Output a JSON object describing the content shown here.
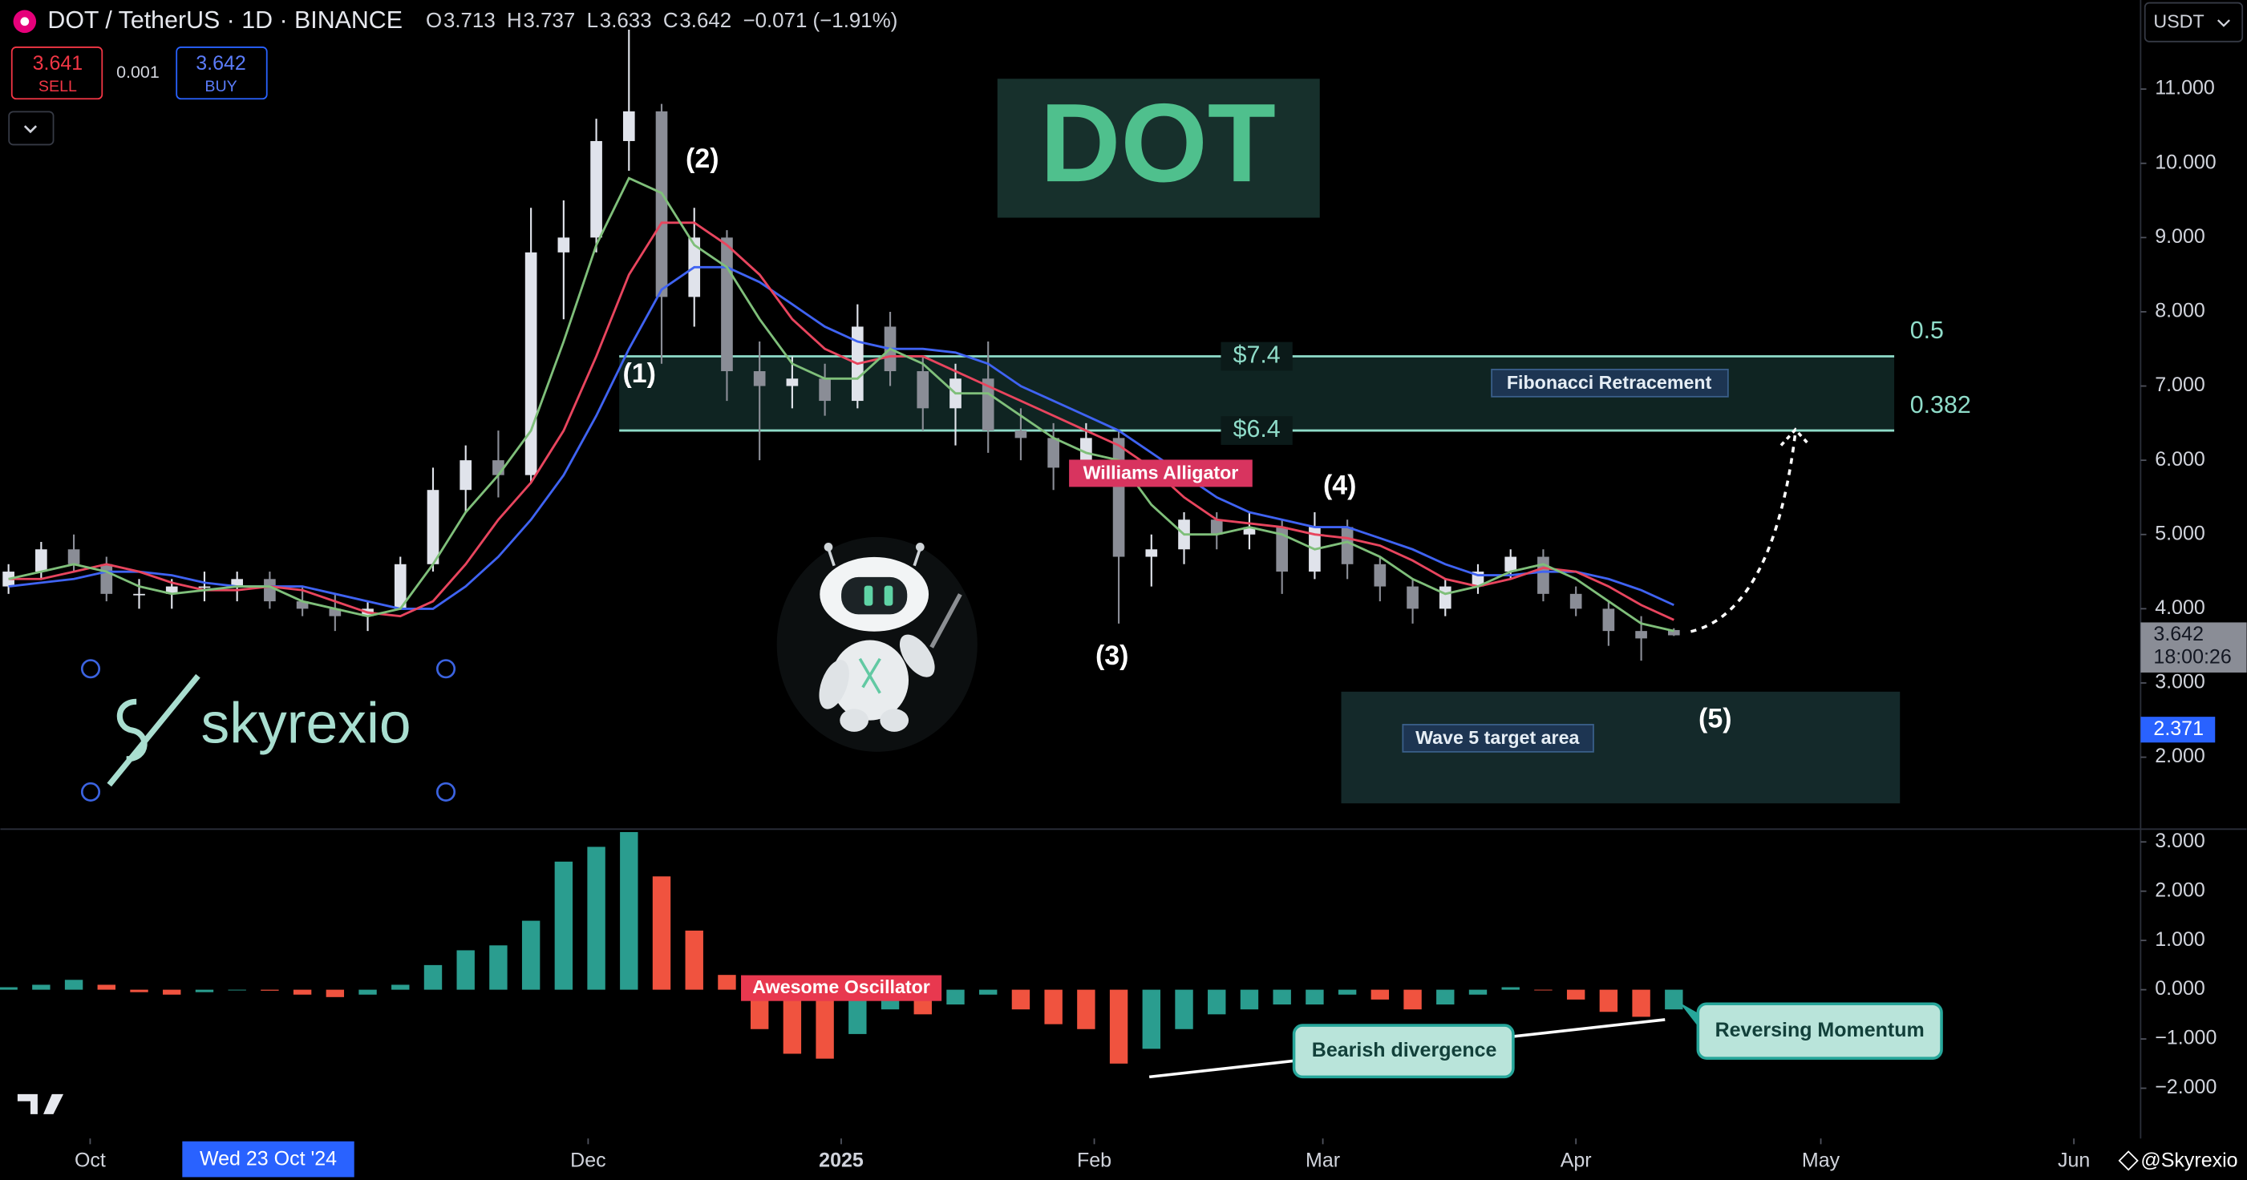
{
  "header": {
    "symbol": "DOT / TetherUS · 1D · BINANCE",
    "o": "O",
    "h": "H",
    "l": "L",
    "c": "C",
    "change": "−0.071 (−1.91%)",
    "sell": 3.641,
    "sell_label": "SELL",
    "spread": 0.001,
    "buy": 3.642,
    "buy_label": "BUY",
    "currency": "USDT",
    "countdown": "18:00:26",
    "crosshair_date": "Wed 23 Oct '24",
    "watermark": "@Skyrexio",
    "logo_text": "skyrexio"
  },
  "chart_data": {
    "type": "candlestick",
    "title": "DOT",
    "x": [
      "2024-09-21",
      "2024-09-25",
      "2024-09-29",
      "2024-10-03",
      "2024-10-07",
      "2024-10-11",
      "2024-10-15",
      "2024-10-19",
      "2024-10-23",
      "2024-10-27",
      "2024-10-31",
      "2024-11-04",
      "2024-11-08",
      "2024-11-12",
      "2024-11-16",
      "2024-11-20",
      "2024-11-24",
      "2024-11-28",
      "2024-12-02",
      "2024-12-06",
      "2024-12-10",
      "2024-12-14",
      "2024-12-18",
      "2024-12-22",
      "2024-12-26",
      "2024-12-30",
      "2025-01-03",
      "2025-01-07",
      "2025-01-11",
      "2025-01-15",
      "2025-01-19",
      "2025-01-23",
      "2025-01-27",
      "2025-01-31",
      "2025-02-04",
      "2025-02-08",
      "2025-02-12",
      "2025-02-16",
      "2025-02-20",
      "2025-02-24",
      "2025-02-28",
      "2025-03-04",
      "2025-03-08",
      "2025-03-12",
      "2025-03-16",
      "2025-03-20",
      "2025-03-24",
      "2025-03-28",
      "2025-04-01",
      "2025-04-05",
      "2025-04-09",
      "2025-04-13"
    ],
    "open": [
      4.3,
      4.5,
      4.8,
      4.6,
      4.2,
      4.2,
      4.3,
      4.3,
      4.4,
      4.1,
      4.0,
      3.9,
      4.0,
      4.6,
      5.6,
      6.0,
      5.8,
      8.8,
      9.0,
      10.3,
      10.7,
      8.2,
      9.0,
      7.2,
      7.0,
      7.1,
      6.8,
      7.8,
      7.2,
      6.7,
      7.1,
      6.4,
      6.3,
      5.9,
      6.3,
      4.7,
      4.8,
      5.2,
      5.0,
      5.1,
      4.5,
      5.1,
      4.6,
      4.3,
      4.0,
      4.3,
      4.5,
      4.7,
      4.2,
      4.0,
      3.7,
      3.713
    ],
    "high": [
      4.6,
      4.9,
      5.0,
      4.7,
      4.4,
      4.4,
      4.5,
      4.5,
      4.5,
      4.3,
      4.2,
      4.1,
      4.7,
      5.9,
      6.2,
      6.4,
      9.4,
      9.5,
      10.6,
      11.8,
      10.8,
      9.4,
      9.1,
      7.6,
      7.4,
      7.3,
      8.1,
      8.0,
      7.4,
      7.3,
      7.6,
      6.7,
      6.5,
      6.5,
      6.4,
      5.0,
      5.3,
      5.3,
      5.3,
      5.2,
      5.3,
      5.2,
      4.7,
      4.4,
      4.4,
      4.6,
      4.8,
      4.8,
      4.3,
      4.1,
      3.9,
      3.737
    ],
    "low": [
      4.2,
      4.4,
      4.5,
      4.1,
      4.0,
      4.0,
      4.1,
      4.1,
      4.0,
      3.9,
      3.7,
      3.7,
      4.0,
      4.5,
      5.3,
      5.5,
      5.7,
      7.9,
      8.8,
      9.9,
      7.3,
      7.8,
      6.8,
      6.0,
      6.7,
      6.6,
      6.7,
      7.0,
      6.4,
      6.2,
      6.1,
      6.0,
      5.6,
      5.7,
      3.8,
      4.3,
      4.6,
      4.8,
      4.8,
      4.2,
      4.4,
      4.4,
      4.1,
      3.8,
      3.9,
      4.2,
      4.4,
      4.1,
      3.9,
      3.5,
      3.3,
      3.633
    ],
    "close": [
      4.5,
      4.8,
      4.6,
      4.2,
      4.2,
      4.3,
      4.3,
      4.4,
      4.1,
      4.0,
      3.9,
      4.0,
      4.6,
      5.6,
      6.0,
      5.8,
      8.8,
      9.0,
      10.3,
      10.7,
      8.2,
      9.0,
      7.2,
      7.0,
      7.1,
      6.8,
      7.8,
      7.2,
      6.7,
      7.1,
      6.4,
      6.3,
      5.9,
      6.3,
      4.7,
      4.8,
      5.2,
      5.0,
      5.1,
      4.5,
      5.1,
      4.6,
      4.3,
      4.0,
      4.3,
      4.5,
      4.7,
      4.2,
      4.0,
      3.7,
      3.6,
      3.642
    ],
    "candle_colors": {
      "up": "#e0e3eb",
      "down": "#8a8d96"
    },
    "xlim": [
      "2024-09-20",
      "2025-06-09"
    ],
    "xticks": [
      {
        "value": "2024-10-01",
        "label": "Oct"
      },
      {
        "value": "2024-12-01",
        "label": "Dec"
      },
      {
        "value": "2025-01-01",
        "label": "2025"
      },
      {
        "value": "2025-02-01",
        "label": "Feb"
      },
      {
        "value": "2025-03-01",
        "label": "Mar"
      },
      {
        "value": "2025-04-01",
        "label": "Apr"
      },
      {
        "value": "2025-05-01",
        "label": "May"
      },
      {
        "value": "2025-06-01",
        "label": "Jun"
      }
    ],
    "ylim": [
      1.05,
      12.2
    ],
    "yticks": [
      {
        "value": 11,
        "label": "11.000"
      },
      {
        "value": 10,
        "label": "10.000"
      },
      {
        "value": 9,
        "label": "9.000"
      },
      {
        "value": 8,
        "label": "8.000"
      },
      {
        "value": 7,
        "label": "7.000"
      },
      {
        "value": 6,
        "label": "6.000"
      },
      {
        "value": 5,
        "label": "5.000"
      },
      {
        "value": 4,
        "label": "4.000"
      },
      {
        "value": 3,
        "label": "3.000"
      },
      {
        "value": 2,
        "label": "2.000"
      }
    ],
    "grid": false,
    "marker_price": 2.371,
    "alligator": {
      "label": "Williams Alligator",
      "lines": [
        {
          "color": "#3f63f2",
          "values": [
            4.3,
            4.35,
            4.4,
            4.5,
            4.5,
            4.45,
            4.35,
            4.3,
            4.3,
            4.3,
            4.2,
            4.1,
            4.0,
            4.0,
            4.3,
            4.7,
            5.2,
            5.8,
            6.6,
            7.5,
            8.3,
            8.6,
            8.6,
            8.4,
            8.1,
            7.8,
            7.6,
            7.5,
            7.5,
            7.45,
            7.3,
            7.0,
            6.8,
            6.6,
            6.4,
            6.1,
            5.8,
            5.5,
            5.3,
            5.2,
            5.1,
            5.1,
            4.95,
            4.8,
            4.6,
            4.45,
            4.45,
            4.5,
            4.5,
            4.4,
            4.25,
            4.05
          ]
        },
        {
          "color": "#e8455e",
          "values": [
            4.4,
            4.4,
            4.5,
            4.6,
            4.5,
            4.35,
            4.25,
            4.25,
            4.3,
            4.25,
            4.1,
            3.95,
            3.9,
            4.1,
            4.6,
            5.2,
            5.7,
            6.4,
            7.4,
            8.5,
            9.2,
            9.2,
            8.9,
            8.5,
            7.9,
            7.5,
            7.3,
            7.4,
            7.4,
            7.2,
            7.0,
            6.8,
            6.6,
            6.4,
            6.2,
            5.9,
            5.5,
            5.2,
            5.15,
            5.1,
            5.0,
            4.95,
            4.85,
            4.65,
            4.4,
            4.3,
            4.4,
            4.55,
            4.5,
            4.3,
            4.05,
            3.85
          ]
        },
        {
          "color": "#7fbf7a",
          "values": [
            4.4,
            4.5,
            4.6,
            4.5,
            4.3,
            4.2,
            4.25,
            4.3,
            4.3,
            4.1,
            4.0,
            3.9,
            4.0,
            4.6,
            5.3,
            5.8,
            6.4,
            7.6,
            8.9,
            9.8,
            9.6,
            8.9,
            8.6,
            7.9,
            7.3,
            7.1,
            7.1,
            7.5,
            7.3,
            6.9,
            6.9,
            6.6,
            6.3,
            6.1,
            6.0,
            5.4,
            5.0,
            5.0,
            5.1,
            5.0,
            4.8,
            4.9,
            4.7,
            4.4,
            4.2,
            4.3,
            4.5,
            4.6,
            4.4,
            4.1,
            3.8,
            3.7
          ]
        }
      ]
    },
    "fibonacci": {
      "label": "Fibonacci Retracement",
      "levels": [
        7.4,
        6.4
      ],
      "value_labels": [
        "$7.4",
        "$6.4"
      ],
      "ratios": [
        0.5,
        0.382
      ],
      "color": "#8fdcc9"
    },
    "waves": [
      "(1)",
      "(2)",
      "(3)",
      "(4)",
      "(5)"
    ],
    "target_label": "Wave 5 target area",
    "oscillator": {
      "type": "bar",
      "label": "Awesome Oscillator",
      "up_color": "#2a9d8f",
      "down_color": "#f0533f",
      "values": [
        0.05,
        0.1,
        0.2,
        0.1,
        -0.05,
        -0.1,
        -0.05,
        0,
        -0.02,
        -0.1,
        -0.15,
        -0.1,
        0.1,
        0.5,
        0.8,
        0.9,
        1.4,
        2.6,
        2.9,
        3.2,
        2.3,
        1.2,
        0.3,
        -0.8,
        -1.3,
        -1.4,
        -0.9,
        -0.4,
        -0.5,
        -0.3,
        -0.1,
        -0.4,
        -0.7,
        -0.8,
        -1.5,
        -1.2,
        -0.8,
        -0.5,
        -0.4,
        -0.3,
        -0.3,
        -0.1,
        -0.2,
        -0.4,
        -0.3,
        -0.1,
        0.05,
        0,
        -0.2,
        -0.45,
        -0.55,
        -0.4
      ],
      "y2lim": [
        -3.02,
        3.23
      ],
      "y2ticks": [
        {
          "value": 3,
          "label": "3.000"
        },
        {
          "value": 2,
          "label": "2.000"
        },
        {
          "value": 1,
          "label": "1.000"
        },
        {
          "value": 0,
          "label": "0.000"
        },
        {
          "value": -1,
          "label": "−1.000"
        },
        {
          "value": -2,
          "label": "−2.000"
        }
      ],
      "notes": [
        "Bearish divergence",
        "Reversing Momentum"
      ]
    }
  }
}
